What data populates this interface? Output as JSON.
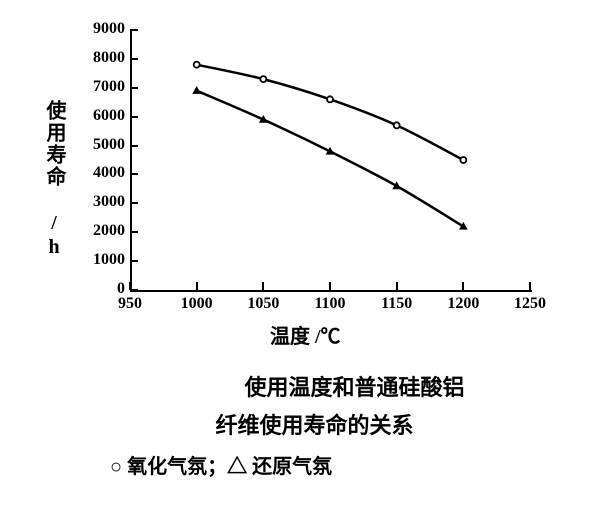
{
  "chart": {
    "type": "line",
    "title_line1": "使用温度和普通硅酸铝",
    "title_line2": "纤维使用寿命的关系",
    "xlabel": "温度 /℃",
    "ylabel": "使用寿命 /h",
    "xlim": [
      950,
      1250
    ],
    "ylim": [
      0,
      9000
    ],
    "xtick_step": 50,
    "ytick_step": 1000,
    "xticks": [
      950,
      1000,
      1050,
      1100,
      1150,
      1200,
      1250
    ],
    "yticks": [
      0,
      1000,
      2000,
      3000,
      4000,
      5000,
      6000,
      7000,
      8000,
      9000
    ],
    "background_color": "#ffffff",
    "axis_color": "#000000",
    "line_color": "#000000",
    "line_width": 2.5,
    "marker_size": 6,
    "title_fontsize": 22,
    "label_fontsize": 20,
    "tick_fontsize": 16,
    "series": [
      {
        "name": "氧化气氛",
        "marker": "circle-open",
        "x": [
          1000,
          1050,
          1100,
          1150,
          1200
        ],
        "y": [
          7800,
          7300,
          6600,
          5700,
          4500
        ]
      },
      {
        "name": "还原气氛",
        "marker": "triangle-filled",
        "x": [
          1000,
          1050,
          1100,
          1150,
          1200
        ],
        "y": [
          6900,
          5900,
          4800,
          3600,
          2200
        ]
      }
    ],
    "legend_text": "○ 氧化气氛；△ 还原气氛"
  }
}
